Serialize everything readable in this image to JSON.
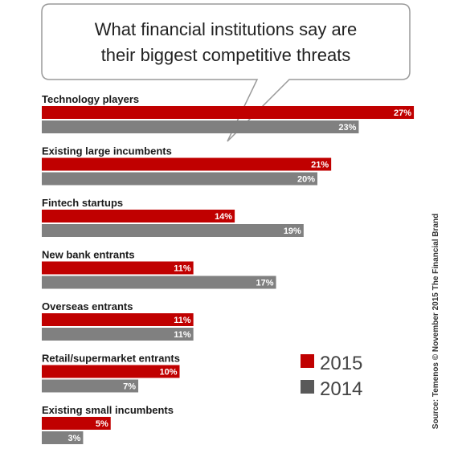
{
  "chart_data": {
    "type": "bar",
    "orientation": "horizontal",
    "title": [
      "What financial institutions say are",
      "their biggest competitive threats"
    ],
    "categories": [
      "Technology players",
      "Existing large incumbents",
      "Fintech startups",
      "New bank entrants",
      "Overseas entrants",
      "Retail/supermarket entrants",
      "Existing small incumbents"
    ],
    "series": [
      {
        "name": "2015",
        "color": "#c00000",
        "values": [
          27,
          21,
          14,
          11,
          11,
          10,
          5
        ]
      },
      {
        "name": "2014",
        "color": "#808080",
        "values": [
          23,
          20,
          19,
          17,
          11,
          7,
          3
        ]
      }
    ],
    "value_suffix": "%",
    "xlim": [
      0,
      27
    ],
    "legend_position": "bottom-right",
    "grid": false
  },
  "source": "Source: Temenos © November 2015 The Financial Brand",
  "colors": {
    "legend_2014_swatch": "#595959"
  }
}
